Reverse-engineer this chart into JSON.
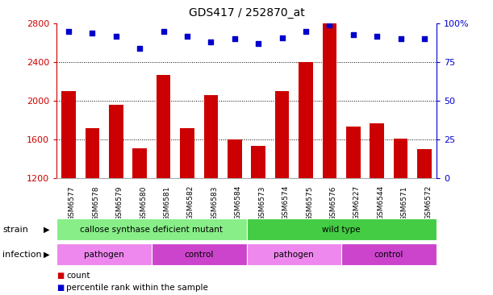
{
  "title": "GDS417 / 252870_at",
  "samples": [
    "GSM6577",
    "GSM6578",
    "GSM6579",
    "GSM6580",
    "GSM6581",
    "GSM6582",
    "GSM6583",
    "GSM6584",
    "GSM6573",
    "GSM6574",
    "GSM6575",
    "GSM6576",
    "GSM6227",
    "GSM6544",
    "GSM6571",
    "GSM6572"
  ],
  "counts": [
    2100,
    1720,
    1960,
    1510,
    2270,
    1720,
    2060,
    1600,
    1540,
    2100,
    2400,
    2820,
    1740,
    1770,
    1610,
    1500
  ],
  "percentile_ranks": [
    95,
    94,
    92,
    84,
    95,
    92,
    88,
    90,
    87,
    91,
    95,
    99,
    93,
    92,
    90,
    90
  ],
  "ylim_left": [
    1200,
    2800
  ],
  "ylim_right": [
    0,
    100
  ],
  "yticks_left": [
    1200,
    1600,
    2000,
    2400,
    2800
  ],
  "yticks_right": [
    0,
    25,
    50,
    75,
    100
  ],
  "bar_color": "#cc0000",
  "dot_color": "#0000cc",
  "strain_groups": [
    {
      "label": "callose synthase deficient mutant",
      "start": 0,
      "end": 8,
      "color": "#88ee88"
    },
    {
      "label": "wild type",
      "start": 8,
      "end": 16,
      "color": "#44cc44"
    }
  ],
  "infection_groups": [
    {
      "label": "pathogen",
      "start": 0,
      "end": 4,
      "color": "#ee88ee"
    },
    {
      "label": "control",
      "start": 4,
      "end": 8,
      "color": "#cc44cc"
    },
    {
      "label": "pathogen",
      "start": 8,
      "end": 12,
      "color": "#ee88ee"
    },
    {
      "label": "control",
      "start": 12,
      "end": 16,
      "color": "#cc44cc"
    }
  ],
  "strain_label": "strain",
  "infection_label": "infection",
  "legend_count_label": "count",
  "legend_percentile_label": "percentile rank within the sample",
  "background_color": "#d8d8d8",
  "plot_bg_color": "#ffffff",
  "left_axis_color": "#cc0000",
  "right_axis_color": "#0000cc",
  "grid_yticks": [
    1600,
    2000,
    2400
  ]
}
